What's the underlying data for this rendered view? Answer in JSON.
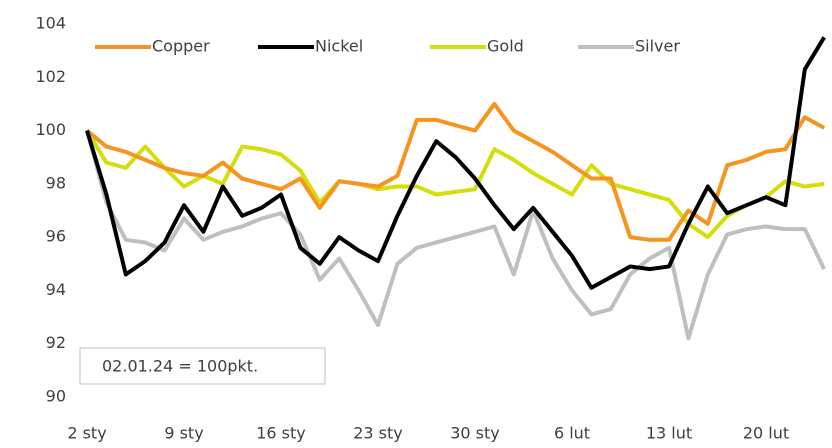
{
  "chart_data": {
    "type": "line",
    "categories": [
      "2 sty",
      null,
      null,
      null,
      null,
      "9 sty",
      null,
      null,
      null,
      null,
      "16 sty",
      null,
      null,
      null,
      null,
      "23 sty",
      null,
      null,
      null,
      null,
      "30 sty",
      null,
      null,
      null,
      null,
      "6 lut",
      null,
      null,
      null,
      null,
      "13 lut",
      null,
      null,
      null,
      null,
      "20 lut",
      null,
      null,
      null
    ],
    "series": [
      {
        "name": "Copper",
        "color": "#f7941d",
        "values": [
          100,
          99.4,
          99.2,
          98.9,
          98.6,
          98.4,
          98.3,
          98.8,
          98.2,
          98.0,
          97.8,
          98.2,
          97.1,
          98.1,
          98.0,
          97.9,
          98.3,
          100.4,
          100.4,
          100.2,
          100.0,
          101.0,
          100.0,
          99.6,
          99.2,
          98.7,
          98.2,
          98.2,
          96.0,
          95.9,
          95.9,
          97.0,
          96.5,
          98.7,
          98.9,
          99.2,
          99.3,
          100.5,
          100.1
        ]
      },
      {
        "name": "Nickel",
        "color": "#000000",
        "values": [
          100,
          97.6,
          94.6,
          95.1,
          95.8,
          97.2,
          96.2,
          97.9,
          96.8,
          97.1,
          97.6,
          95.6,
          95.0,
          96.0,
          95.5,
          95.1,
          96.8,
          98.3,
          99.6,
          99.0,
          98.2,
          97.2,
          96.3,
          97.1,
          96.2,
          95.3,
          94.1,
          94.5,
          94.9,
          94.8,
          94.9,
          96.5,
          97.9,
          96.9,
          97.2,
          97.5,
          97.2,
          102.3,
          103.5
        ]
      },
      {
        "name": "Gold",
        "color": "#d4de0a",
        "values": [
          100,
          98.8,
          98.6,
          99.4,
          98.6,
          97.9,
          98.3,
          98.0,
          99.4,
          99.3,
          99.1,
          98.5,
          97.3,
          98.1,
          98.0,
          97.8,
          97.9,
          97.9,
          97.6,
          97.7,
          97.8,
          99.3,
          98.9,
          98.4,
          98.0,
          97.6,
          98.7,
          98.0,
          97.8,
          97.6,
          97.4,
          96.5,
          96.0,
          96.8,
          97.2,
          97.5,
          98.1,
          97.9,
          98.0
        ]
      },
      {
        "name": "Silver",
        "color": "#bfbfbf",
        "values": [
          100,
          97.3,
          95.9,
          95.8,
          95.5,
          96.7,
          95.9,
          96.2,
          96.4,
          96.7,
          96.9,
          96.1,
          94.4,
          95.2,
          94.0,
          92.7,
          95.0,
          95.6,
          95.8,
          96.0,
          96.2,
          96.4,
          94.6,
          97.0,
          95.2,
          94.0,
          93.1,
          93.3,
          94.6,
          95.2,
          95.6,
          92.2,
          94.6,
          96.1,
          96.3,
          96.4,
          96.3,
          96.3,
          94.8
        ]
      }
    ],
    "ylim": [
      90,
      104
    ],
    "yticks": [
      90,
      92,
      94,
      96,
      98,
      100,
      102,
      104
    ],
    "annotation": "02.01.24 = 100pkt.",
    "legend": "top"
  }
}
